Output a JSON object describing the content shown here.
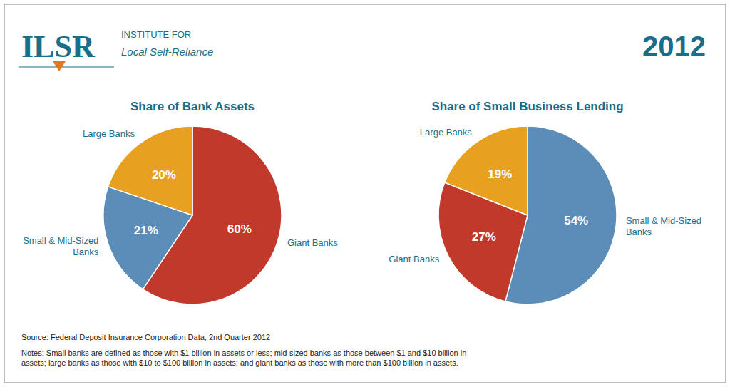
{
  "chart_data": [
    {
      "type": "pie",
      "title": "Share of Bank Assets",
      "categories": [
        "Giant Banks",
        "Small & Mid-Sized\nBanks",
        "Large Banks"
      ],
      "values": [
        60,
        21,
        20
      ],
      "value_labels": [
        "60%",
        "21%",
        "20%"
      ],
      "colors": [
        "#c0392b",
        "#5b8db8",
        "#e8a020"
      ],
      "data_labels": true,
      "annotations": [
        "ILSR",
        "INSTITUTE FOR",
        "Local Self-Reliance",
        "2012",
        "Source: Federal Deposit Insurance Corporation Data, 2nd Quarter 2012",
        "Notes: Small banks are defined as those with $1 billion in assets or less; mid-sized banks as those between $1 and $10 billion in\nassets; large banks as those with $10 to $100 billion in assets; and giant banks as those with more than $100 billion in assets."
      ]
    },
    {
      "type": "pie",
      "title": "Share of Small Business Lending",
      "categories": [
        "Small & Mid-Sized\nBanks",
        "Giant Banks",
        "Large Banks"
      ],
      "values": [
        54,
        27,
        19
      ],
      "value_labels": [
        "54%",
        "27%",
        "19%"
      ],
      "colors": [
        "#5b8db8",
        "#c0392b",
        "#e8a020"
      ],
      "data_labels": true
    }
  ]
}
